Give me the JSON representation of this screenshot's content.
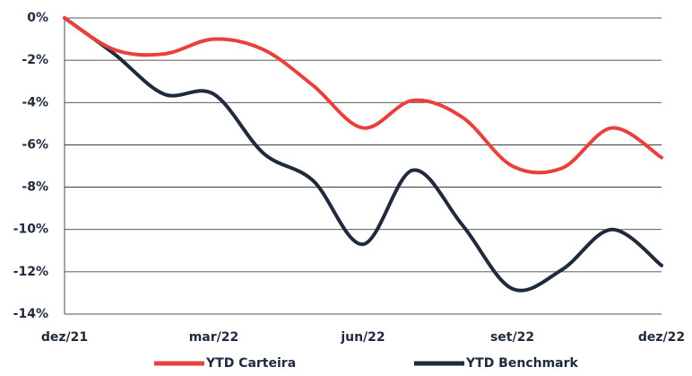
{
  "chart_data": {
    "type": "line",
    "categories": [
      "dez/21",
      null,
      null,
      "mar/22",
      null,
      null,
      "jun/22",
      null,
      null,
      "set/22",
      null,
      null,
      "dez/22"
    ],
    "series": [
      {
        "name": "YTD Carteira",
        "color": "#e8413c",
        "values": [
          0,
          -1.5,
          -1.7,
          -1.0,
          -1.5,
          -3.2,
          -5.2,
          -3.9,
          -4.7,
          -7.0,
          -7.1,
          -5.2,
          -6.6
        ]
      },
      {
        "name": "YTD Benchmark",
        "color": "#1f2a3c",
        "values": [
          0,
          -1.7,
          -3.6,
          -3.6,
          -6.4,
          -7.7,
          -10.7,
          -7.2,
          -9.8,
          -12.8,
          -11.9,
          -10.0,
          -11.7
        ]
      }
    ],
    "ylim": [
      -14,
      0
    ],
    "yticks": [
      {
        "value": 0,
        "label": "0%"
      },
      {
        "value": -2,
        "label": "-2%"
      },
      {
        "value": -4,
        "label": "-4%"
      },
      {
        "value": -6,
        "label": "-6%"
      },
      {
        "value": -8,
        "label": "-8%"
      },
      {
        "value": -10,
        "label": "-10%"
      },
      {
        "value": -12,
        "label": "-12%"
      },
      {
        "value": -14,
        "label": "-14%"
      }
    ],
    "grid": true,
    "legend": "bottom"
  }
}
